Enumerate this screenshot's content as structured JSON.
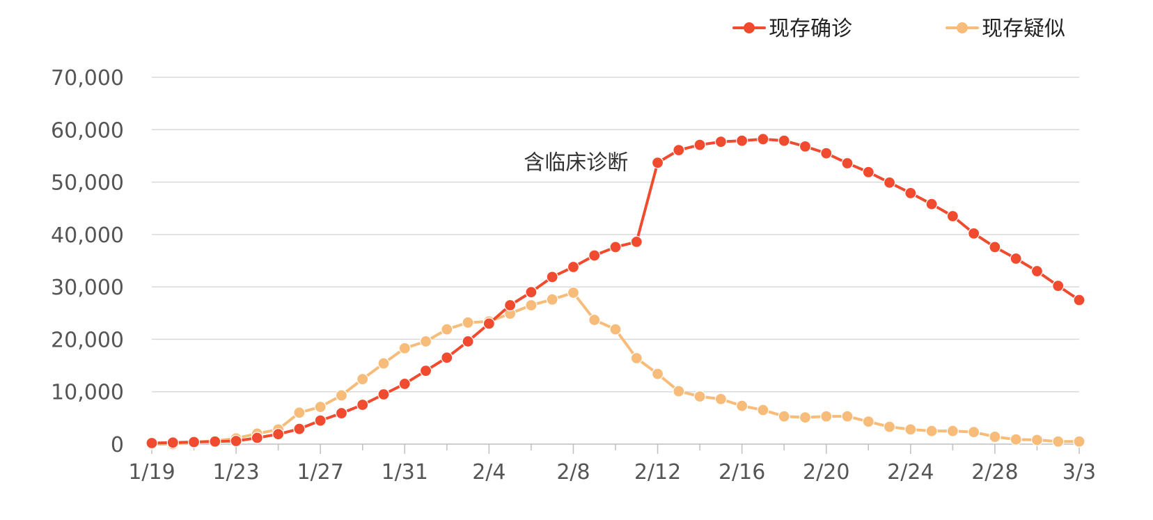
{
  "chart_data": {
    "type": "line",
    "title": "",
    "xlabel": "",
    "ylabel": "",
    "ylim": [
      0,
      70000
    ],
    "yticks": [
      0,
      10000,
      20000,
      30000,
      40000,
      50000,
      60000,
      70000
    ],
    "ytick_labels": [
      "0",
      "10,000",
      "20,000",
      "30,000",
      "40,000",
      "50,000",
      "60,000",
      "70,000"
    ],
    "grid": true,
    "legend_position": "top-right",
    "x": [
      "1/19",
      "1/20",
      "1/21",
      "1/22",
      "1/23",
      "1/24",
      "1/25",
      "1/26",
      "1/27",
      "1/28",
      "1/29",
      "1/30",
      "1/31",
      "2/1",
      "2/2",
      "2/3",
      "2/4",
      "2/5",
      "2/6",
      "2/7",
      "2/8",
      "2/9",
      "2/10",
      "2/11",
      "2/12",
      "2/13",
      "2/14",
      "2/15",
      "2/16",
      "2/17",
      "2/18",
      "2/19",
      "2/20",
      "2/21",
      "2/22",
      "2/23",
      "2/24",
      "2/25",
      "2/26",
      "2/27",
      "2/28",
      "2/29",
      "3/1",
      "3/2",
      "3/3"
    ],
    "xtick_labels": [
      "1/19",
      "1/23",
      "1/27",
      "1/31",
      "2/4",
      "2/8",
      "2/12",
      "2/16",
      "2/20",
      "2/24",
      "2/28",
      "3/3"
    ],
    "series": [
      {
        "name": "现存确诊",
        "color": "#F04B2F",
        "values": [
          200,
          300,
          400,
          500,
          600,
          1200,
          1900,
          2900,
          4500,
          5900,
          7500,
          9500,
          11500,
          14000,
          16500,
          19600,
          23000,
          26500,
          29000,
          31900,
          33800,
          36000,
          37600,
          38600,
          53700,
          56100,
          57100,
          57700,
          57900,
          58200,
          57900,
          56800,
          55500,
          53600,
          51900,
          49900,
          47900,
          45800,
          43500,
          40200,
          37600,
          35400,
          33000,
          30200,
          27500
        ]
      },
      {
        "name": "现存疑似",
        "color": "#F7BC7A",
        "values": [
          0,
          0,
          400,
          600,
          1100,
          2000,
          2800,
          6000,
          7100,
          9300,
          12400,
          15400,
          18300,
          19600,
          21900,
          23200,
          23400,
          24900,
          26500,
          27600,
          28900,
          23700,
          21900,
          16400,
          13400,
          10100,
          9100,
          8600,
          7300,
          6500,
          5300,
          5100,
          5300,
          5300,
          4300,
          3300,
          2800,
          2500,
          2500,
          2300,
          1400,
          900,
          800,
          500,
          500
        ]
      }
    ],
    "annotations": [
      {
        "text": "含临床诊断",
        "x": "2/11",
        "y": 53700
      }
    ]
  }
}
